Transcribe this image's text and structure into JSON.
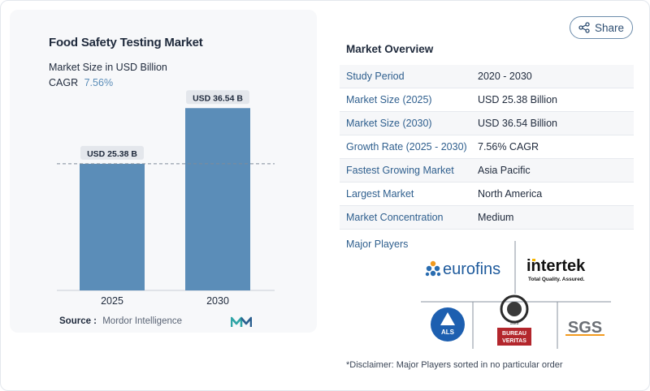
{
  "share": {
    "label": "Share",
    "icon": "share-icon"
  },
  "chart_data": {
    "type": "bar",
    "title": "Food Safety Testing Market",
    "subtitle": "Market Size in USD Billion",
    "cagr_label": "CAGR",
    "cagr_value": "7.56%",
    "categories": [
      "2025",
      "2030"
    ],
    "values": [
      25.38,
      36.54
    ],
    "value_labels": [
      "USD 25.38 B",
      "USD 36.54 B"
    ],
    "ylim": [
      0,
      40
    ],
    "grid": false,
    "reference_line": "dashed at 2025 value",
    "bar_color": "#5b8db8",
    "source_label": "Source :",
    "source_value": "Mordor Intelligence"
  },
  "overview": {
    "title": "Market Overview",
    "rows": [
      {
        "label": "Study Period",
        "value": "2020 - 2030"
      },
      {
        "label": "Market Size (2025)",
        "value": "USD 25.38 Billion"
      },
      {
        "label": "Market Size (2030)",
        "value": "USD 36.54 Billion"
      },
      {
        "label": "Growth Rate (2025 - 2030)",
        "value": "7.56% CAGR"
      },
      {
        "label": "Fastest Growing Market",
        "value": "Asia Pacific"
      },
      {
        "label": "Largest Market",
        "value": "North America"
      },
      {
        "label": "Market Concentration",
        "value": "Medium"
      }
    ]
  },
  "players": {
    "label": "Major Players",
    "logos": {
      "eurofins": "eurofins",
      "intertek": "intertek",
      "intertek_tagline": "Total Quality. Assured.",
      "als": "ALS",
      "bureau_veritas_line1": "BUREAU",
      "bureau_veritas_line2": "VERITAS",
      "bureau_veritas_year": "1828",
      "sgs": "SGS"
    }
  },
  "disclaimer": "*Disclaimer: Major Players sorted in no particular order",
  "colors": {
    "accent": "#5b8db8",
    "label_blue": "#2f5f8e",
    "dark": "#1f2a3c"
  }
}
